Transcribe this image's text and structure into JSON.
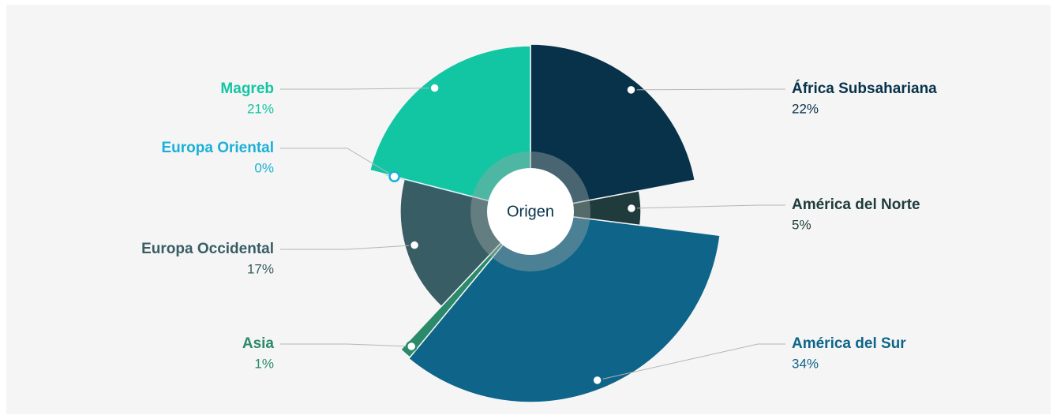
{
  "chart_data": {
    "type": "pie",
    "center_label": "Origen",
    "categories": [
      "África Subsahariana",
      "América del Norte",
      "América del Sur",
      "Asia",
      "Europa Occidental",
      "Europa Oriental",
      "Magreb"
    ],
    "values": [
      22,
      5,
      34,
      1,
      17,
      0,
      21
    ],
    "value_labels": [
      "22%",
      "5%",
      "34%",
      "1%",
      "17%",
      "0%",
      "21%"
    ],
    "colors": [
      "#08324a",
      "#1f3b3b",
      "#0e6589",
      "#2a8a6a",
      "#385d64",
      "#1ab0d8",
      "#12c6a3"
    ]
  }
}
